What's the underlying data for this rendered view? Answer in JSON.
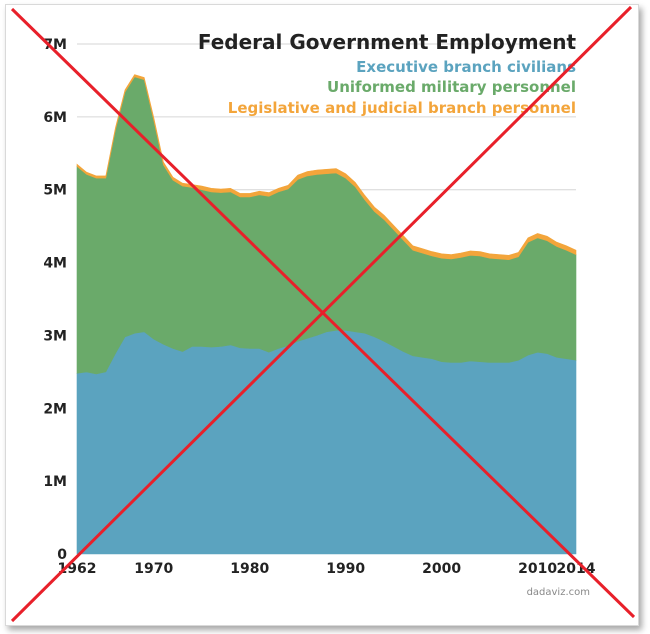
{
  "chart_data": {
    "type": "area",
    "stacked": true,
    "title": "Federal Government Employment",
    "x": [
      1962,
      1963,
      1964,
      1965,
      1966,
      1967,
      1968,
      1969,
      1970,
      1971,
      1972,
      1973,
      1974,
      1975,
      1976,
      1977,
      1978,
      1979,
      1980,
      1981,
      1982,
      1983,
      1984,
      1985,
      1986,
      1987,
      1988,
      1989,
      1990,
      1991,
      1992,
      1993,
      1994,
      1995,
      1996,
      1997,
      1998,
      1999,
      2000,
      2001,
      2002,
      2003,
      2004,
      2005,
      2006,
      2007,
      2008,
      2009,
      2010,
      2011,
      2012,
      2013,
      2014
    ],
    "series": [
      {
        "name": "Executive branch civilians",
        "color": "#5ba3bf",
        "values": [
          2.48,
          2.5,
          2.47,
          2.5,
          2.75,
          2.98,
          3.03,
          3.05,
          2.95,
          2.88,
          2.82,
          2.78,
          2.85,
          2.85,
          2.84,
          2.85,
          2.87,
          2.83,
          2.82,
          2.82,
          2.77,
          2.82,
          2.86,
          2.92,
          2.96,
          3.0,
          3.05,
          3.07,
          3.07,
          3.05,
          3.03,
          2.98,
          2.92,
          2.85,
          2.78,
          2.72,
          2.7,
          2.68,
          2.64,
          2.63,
          2.63,
          2.65,
          2.64,
          2.63,
          2.63,
          2.63,
          2.66,
          2.73,
          2.77,
          2.75,
          2.7,
          2.68,
          2.66
        ]
      },
      {
        "name": "Uniformed military personnel",
        "color": "#6aaa6a",
        "values": [
          2.84,
          2.71,
          2.69,
          2.66,
          3.07,
          3.36,
          3.52,
          3.46,
          3.0,
          2.46,
          2.31,
          2.27,
          2.18,
          2.15,
          2.13,
          2.11,
          2.1,
          2.07,
          2.08,
          2.11,
          2.14,
          2.15,
          2.15,
          2.22,
          2.23,
          2.21,
          2.17,
          2.16,
          2.09,
          1.99,
          1.83,
          1.72,
          1.67,
          1.6,
          1.53,
          1.45,
          1.43,
          1.41,
          1.42,
          1.42,
          1.44,
          1.45,
          1.45,
          1.43,
          1.42,
          1.41,
          1.42,
          1.55,
          1.57,
          1.55,
          1.52,
          1.49,
          1.45
        ]
      },
      {
        "name": "Legislative and judicial branch personnel",
        "color": "#f3a53b",
        "values": [
          0.03,
          0.03,
          0.03,
          0.03,
          0.03,
          0.03,
          0.03,
          0.03,
          0.04,
          0.04,
          0.04,
          0.04,
          0.04,
          0.05,
          0.05,
          0.05,
          0.05,
          0.05,
          0.05,
          0.05,
          0.05,
          0.05,
          0.05,
          0.06,
          0.06,
          0.06,
          0.06,
          0.06,
          0.06,
          0.06,
          0.06,
          0.06,
          0.06,
          0.06,
          0.06,
          0.06,
          0.06,
          0.06,
          0.06,
          0.06,
          0.06,
          0.06,
          0.06,
          0.06,
          0.06,
          0.06,
          0.06,
          0.06,
          0.06,
          0.06,
          0.06,
          0.06,
          0.06
        ]
      }
    ],
    "y_ticks": [
      "0",
      "1M",
      "2M",
      "3M",
      "4M",
      "5M",
      "6M",
      "7M"
    ],
    "y_tick_values": [
      0,
      1,
      2,
      3,
      4,
      5,
      6,
      7
    ],
    "ylim": [
      0,
      7
    ],
    "x_ticks": [
      "1962",
      "1970",
      "1980",
      "1990",
      "2000",
      "2010",
      "2014"
    ],
    "x_tick_values": [
      1962,
      1970,
      1980,
      1990,
      2000,
      2010,
      2014
    ],
    "xlim": [
      1962,
      2014
    ],
    "grid": true,
    "legend_position": "top-right",
    "credit": "dadaviz.com"
  },
  "overlay": {
    "type": "red-cross",
    "color": "#e8202a"
  }
}
